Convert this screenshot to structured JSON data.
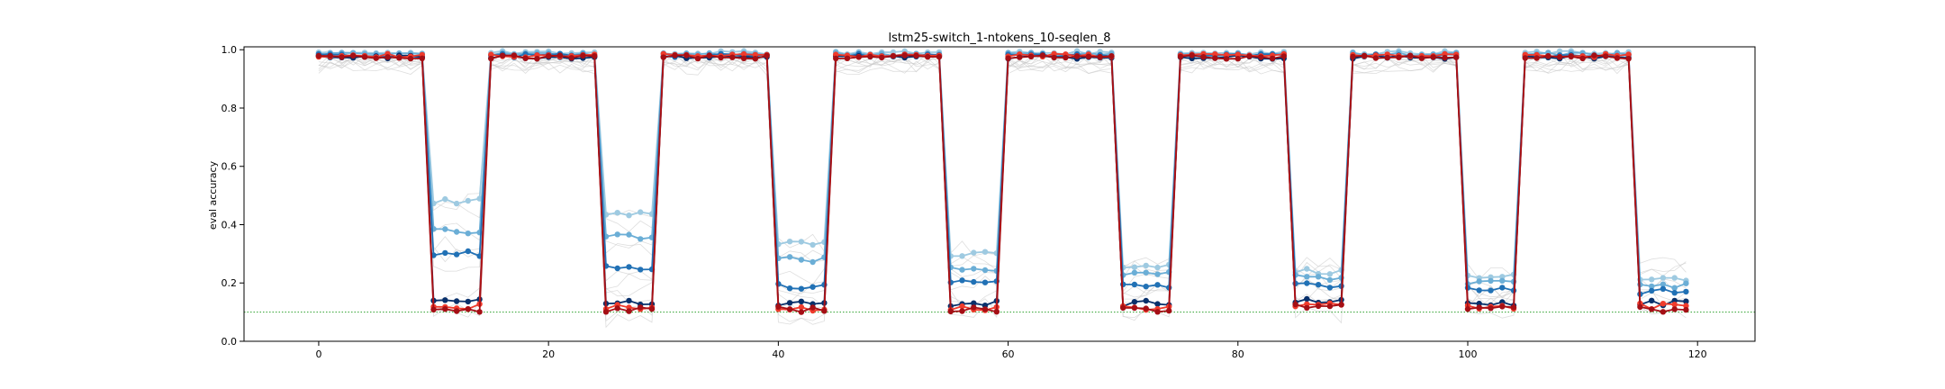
{
  "chart_data": {
    "type": "line",
    "title": "lstm25-switch_1-ntokens_10-seqlen_8",
    "xlabel": "",
    "ylabel": "eval accuracy",
    "xlim": [
      -6.5,
      125
    ],
    "ylim": [
      0.0,
      1.01
    ],
    "xticks": [
      0,
      20,
      40,
      60,
      80,
      100,
      120
    ],
    "xtick_labels": [
      "0",
      "20",
      "40",
      "60",
      "80",
      "100",
      "120"
    ],
    "yticks": [
      0.0,
      0.2,
      0.4,
      0.6,
      0.8,
      1.0
    ],
    "ytick_labels": [
      "0.0",
      "0.2",
      "0.4",
      "0.6",
      "0.8",
      "1.0"
    ],
    "grid": false,
    "legend": false,
    "reference_line": {
      "y": 0.1,
      "color": "#2ca02c",
      "style": "dotted"
    },
    "phases": [
      {
        "x_start": 0,
        "x_end": 9,
        "type": "high"
      },
      {
        "x_start": 10,
        "x_end": 14,
        "type": "low"
      },
      {
        "x_start": 15,
        "x_end": 24,
        "type": "high"
      },
      {
        "x_start": 25,
        "x_end": 29,
        "type": "low"
      },
      {
        "x_start": 30,
        "x_end": 39,
        "type": "high"
      },
      {
        "x_start": 40,
        "x_end": 44,
        "type": "low"
      },
      {
        "x_start": 45,
        "x_end": 54,
        "type": "high"
      },
      {
        "x_start": 55,
        "x_end": 59,
        "type": "low"
      },
      {
        "x_start": 60,
        "x_end": 69,
        "type": "high"
      },
      {
        "x_start": 70,
        "x_end": 74,
        "type": "low"
      },
      {
        "x_start": 75,
        "x_end": 84,
        "type": "high"
      },
      {
        "x_start": 85,
        "x_end": 89,
        "type": "low"
      },
      {
        "x_start": 90,
        "x_end": 99,
        "type": "high"
      },
      {
        "x_start": 100,
        "x_end": 104,
        "type": "low"
      },
      {
        "x_start": 105,
        "x_end": 114,
        "type": "high"
      },
      {
        "x_start": 115,
        "x_end": 119,
        "type": "low"
      }
    ],
    "series": [
      {
        "color": "#9ecae1",
        "high": 0.99,
        "low": [
          0.48,
          0.44,
          0.34,
          0.3,
          0.26,
          0.24,
          0.22,
          0.21
        ]
      },
      {
        "color": "#6baed6",
        "high": 0.985,
        "low": [
          0.38,
          0.36,
          0.28,
          0.25,
          0.23,
          0.22,
          0.2,
          0.19
        ]
      },
      {
        "color": "#2171b5",
        "high": 0.98,
        "low": [
          0.3,
          0.25,
          0.19,
          0.21,
          0.19,
          0.19,
          0.18,
          0.17
        ]
      },
      {
        "color": "#08306b",
        "high": 0.975,
        "low": [
          0.145,
          0.135,
          0.13,
          0.13,
          0.13,
          0.14,
          0.13,
          0.13
        ]
      },
      {
        "color": "#ef3b2c",
        "high": 0.98,
        "low": [
          0.12,
          0.12,
          0.115,
          0.115,
          0.115,
          0.125,
          0.12,
          0.12
        ]
      },
      {
        "color": "#a50f15",
        "high": 0.975,
        "low": [
          0.11,
          0.11,
          0.11,
          0.11,
          0.11,
          0.12,
          0.11,
          0.11
        ]
      }
    ]
  }
}
